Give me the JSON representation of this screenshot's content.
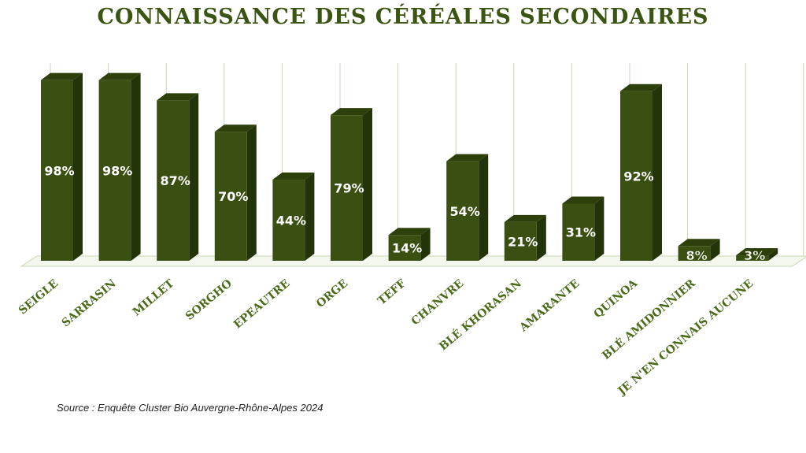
{
  "chart_data": {
    "type": "bar",
    "title": "CONNAISSANCE DES CÉRÉALES SECONDAIRES",
    "categories": [
      "SEIGLE",
      "SARRASIN",
      "MILLET",
      "SORGHO",
      "EPEAUTRE",
      "ORGE",
      "TEFF",
      "CHANVRE",
      "BLÉ KHORASAN",
      "AMARANTE",
      "QUINOA",
      "BLÉ AMIDONNIER",
      "JE N'EN CONNAIS AUCUNE"
    ],
    "values": [
      98,
      98,
      87,
      70,
      44,
      79,
      14,
      54,
      21,
      31,
      92,
      8,
      3
    ],
    "value_suffix": "%",
    "ylim": [
      0,
      100
    ],
    "grid": "vertical",
    "bar_style": "3d",
    "colors": {
      "bar_front": "#3a5012",
      "bar_top": "#2d400b",
      "bar_side": "#23330a",
      "label_text": "#ffffff",
      "category_text": "#4a6a18",
      "title_text": "#3a5512",
      "grid": "#c8d7b4"
    }
  },
  "source": "Source : Enquête Cluster Bio Auvergne-Rhône-Alpes 2024"
}
